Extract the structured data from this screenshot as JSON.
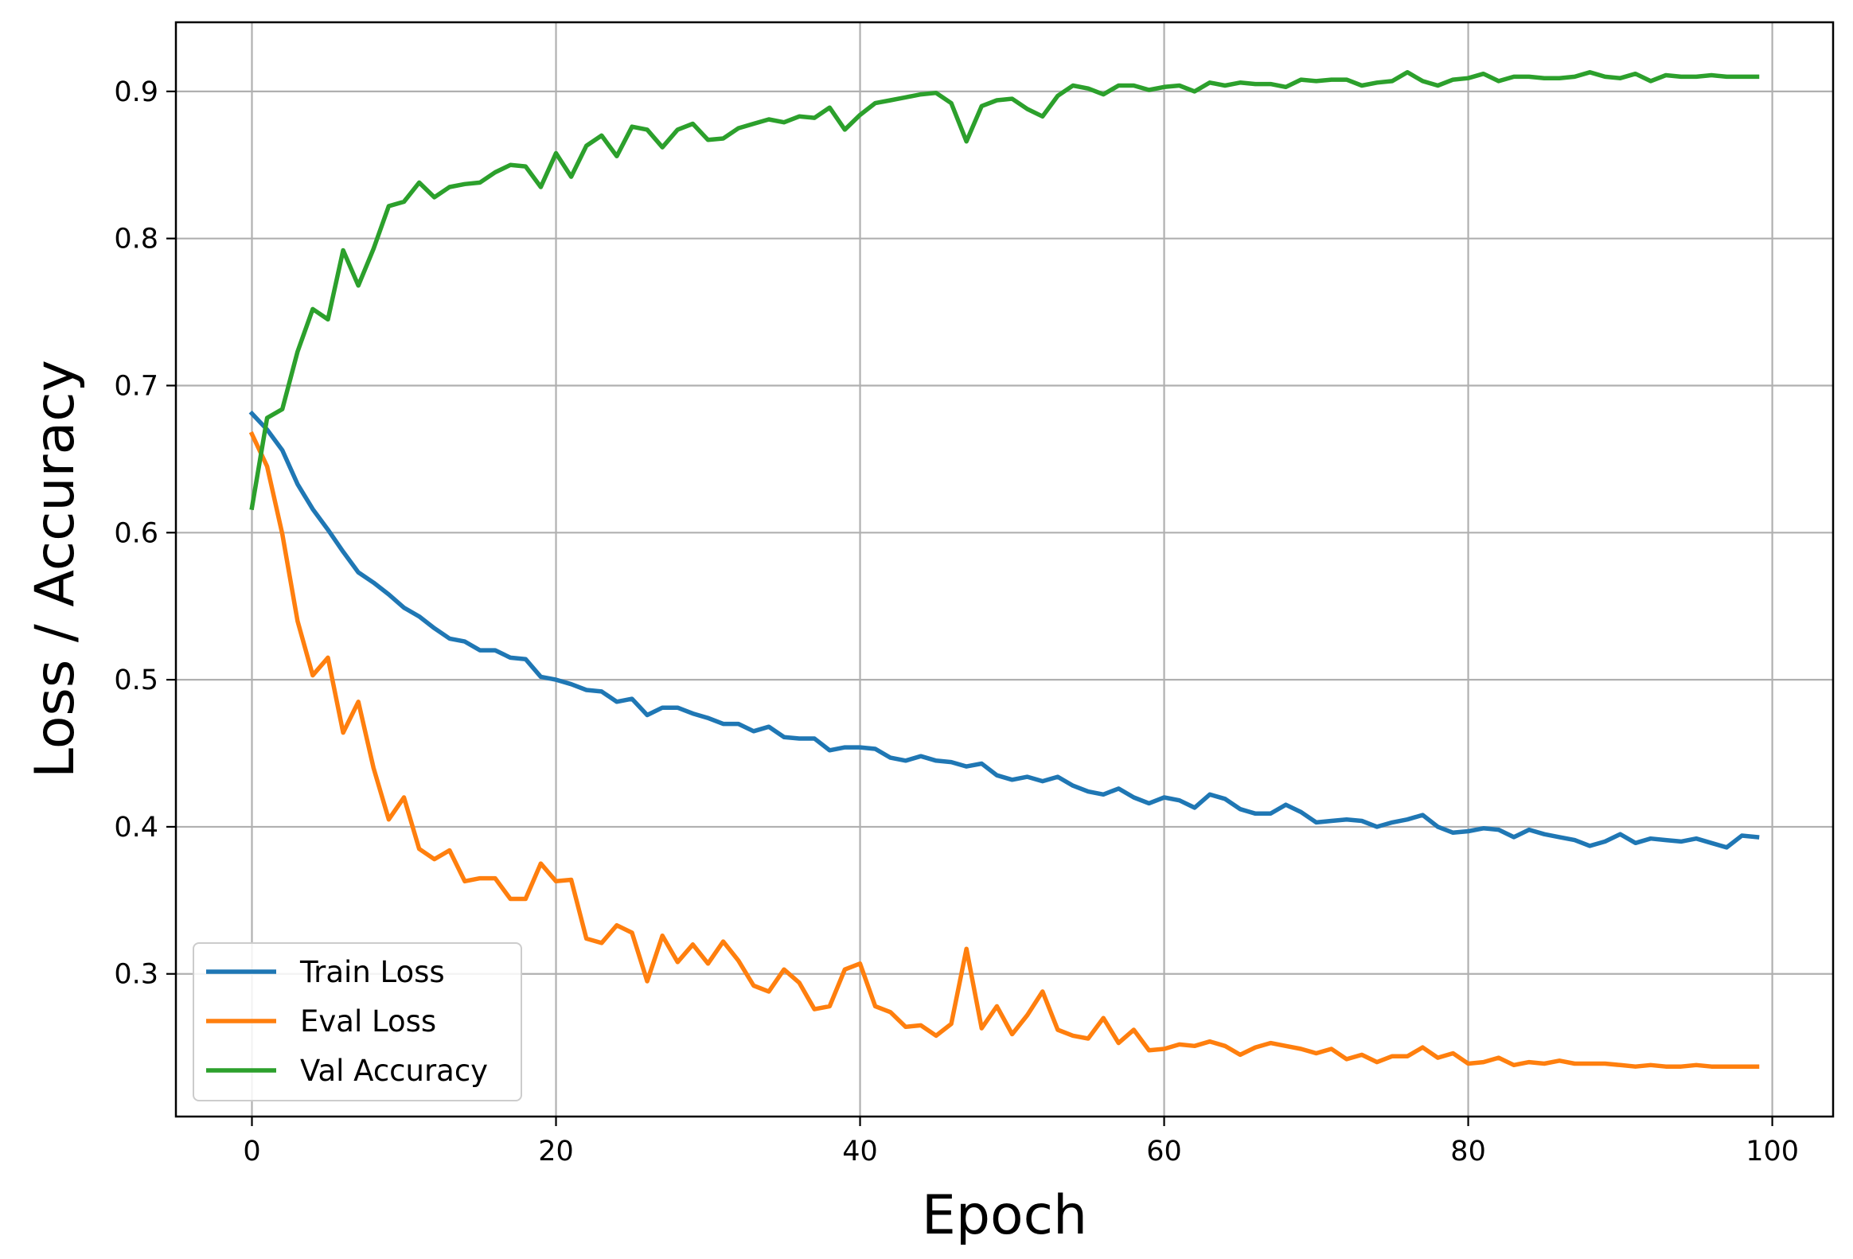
{
  "chart_data": {
    "type": "line",
    "xlabel": "Epoch",
    "ylabel": "Loss / Accuracy",
    "xlim": [
      -5,
      104
    ],
    "ylim": [
      0.203,
      0.947
    ],
    "xticks": [
      0,
      20,
      40,
      60,
      80,
      100
    ],
    "yticks": [
      0.3,
      0.4,
      0.5,
      0.6,
      0.7,
      0.8,
      0.9
    ],
    "xtick_labels": [
      "0",
      "20",
      "40",
      "60",
      "80",
      "100"
    ],
    "ytick_labels": [
      "0.3",
      "0.4",
      "0.5",
      "0.6",
      "0.7",
      "0.8",
      "0.9"
    ],
    "grid": true,
    "legend_position": "lower-left",
    "x": [
      0,
      1,
      2,
      3,
      4,
      5,
      6,
      7,
      8,
      9,
      10,
      11,
      12,
      13,
      14,
      15,
      16,
      17,
      18,
      19,
      20,
      21,
      22,
      23,
      24,
      25,
      26,
      27,
      28,
      29,
      30,
      31,
      32,
      33,
      34,
      35,
      36,
      37,
      38,
      39,
      40,
      41,
      42,
      43,
      44,
      45,
      46,
      47,
      48,
      49,
      50,
      51,
      52,
      53,
      54,
      55,
      56,
      57,
      58,
      59,
      60,
      61,
      62,
      63,
      64,
      65,
      66,
      67,
      68,
      69,
      70,
      71,
      72,
      73,
      74,
      75,
      76,
      77,
      78,
      79,
      80,
      81,
      82,
      83,
      84,
      85,
      86,
      87,
      88,
      89,
      90,
      91,
      92,
      93,
      94,
      95,
      96,
      97,
      98,
      99
    ],
    "series": [
      {
        "name": "Train Loss",
        "color": "#1f77b4",
        "values": [
          0.681,
          0.67,
          0.656,
          0.633,
          0.616,
          0.602,
          0.587,
          0.573,
          0.566,
          0.558,
          0.549,
          0.543,
          0.535,
          0.528,
          0.526,
          0.52,
          0.52,
          0.515,
          0.514,
          0.502,
          0.5,
          0.497,
          0.493,
          0.492,
          0.485,
          0.487,
          0.476,
          0.481,
          0.481,
          0.477,
          0.474,
          0.47,
          0.47,
          0.465,
          0.468,
          0.461,
          0.46,
          0.46,
          0.452,
          0.454,
          0.454,
          0.453,
          0.447,
          0.445,
          0.448,
          0.445,
          0.444,
          0.441,
          0.443,
          0.435,
          0.432,
          0.434,
          0.431,
          0.434,
          0.428,
          0.424,
          0.422,
          0.426,
          0.42,
          0.416,
          0.42,
          0.418,
          0.413,
          0.422,
          0.419,
          0.412,
          0.409,
          0.409,
          0.415,
          0.41,
          0.403,
          0.404,
          0.405,
          0.404,
          0.4,
          0.403,
          0.405,
          0.408,
          0.4,
          0.396,
          0.397,
          0.399,
          0.398,
          0.393,
          0.398,
          0.395,
          0.393,
          0.391,
          0.387,
          0.39,
          0.395,
          0.389,
          0.392,
          0.391,
          0.39,
          0.392,
          0.389,
          0.386,
          0.394,
          0.393
        ]
      },
      {
        "name": "Eval Loss",
        "color": "#ff7f0e",
        "values": [
          0.667,
          0.645,
          0.599,
          0.54,
          0.503,
          0.515,
          0.464,
          0.485,
          0.44,
          0.405,
          0.42,
          0.385,
          0.378,
          0.384,
          0.363,
          0.365,
          0.365,
          0.351,
          0.351,
          0.375,
          0.363,
          0.364,
          0.324,
          0.321,
          0.333,
          0.328,
          0.295,
          0.326,
          0.308,
          0.32,
          0.307,
          0.322,
          0.309,
          0.292,
          0.288,
          0.303,
          0.294,
          0.276,
          0.278,
          0.303,
          0.307,
          0.278,
          0.274,
          0.264,
          0.265,
          0.258,
          0.266,
          0.317,
          0.263,
          0.278,
          0.259,
          0.272,
          0.288,
          0.262,
          0.258,
          0.256,
          0.27,
          0.253,
          0.262,
          0.248,
          0.249,
          0.252,
          0.251,
          0.254,
          0.251,
          0.245,
          0.25,
          0.253,
          0.251,
          0.249,
          0.246,
          0.249,
          0.242,
          0.245,
          0.24,
          0.244,
          0.244,
          0.25,
          0.243,
          0.246,
          0.239,
          0.24,
          0.243,
          0.238,
          0.24,
          0.239,
          0.241,
          0.239,
          0.239,
          0.239,
          0.238,
          0.237,
          0.238,
          0.237,
          0.237,
          0.238,
          0.237,
          0.237,
          0.237,
          0.237
        ]
      },
      {
        "name": "Val Accuracy",
        "color": "#2ca02c",
        "values": [
          0.617,
          0.678,
          0.684,
          0.723,
          0.752,
          0.745,
          0.792,
          0.768,
          0.793,
          0.822,
          0.825,
          0.838,
          0.828,
          0.835,
          0.837,
          0.838,
          0.845,
          0.85,
          0.849,
          0.835,
          0.858,
          0.842,
          0.863,
          0.87,
          0.856,
          0.876,
          0.874,
          0.862,
          0.874,
          0.878,
          0.867,
          0.868,
          0.875,
          0.878,
          0.881,
          0.879,
          0.883,
          0.882,
          0.889,
          0.874,
          0.884,
          0.892,
          0.894,
          0.896,
          0.898,
          0.899,
          0.892,
          0.866,
          0.89,
          0.894,
          0.895,
          0.888,
          0.883,
          0.897,
          0.904,
          0.902,
          0.898,
          0.904,
          0.904,
          0.901,
          0.903,
          0.904,
          0.9,
          0.906,
          0.904,
          0.906,
          0.905,
          0.905,
          0.903,
          0.908,
          0.907,
          0.908,
          0.908,
          0.904,
          0.906,
          0.907,
          0.913,
          0.907,
          0.904,
          0.908,
          0.909,
          0.912,
          0.907,
          0.91,
          0.91,
          0.909,
          0.909,
          0.91,
          0.913,
          0.91,
          0.909,
          0.912,
          0.907,
          0.911,
          0.91,
          0.91,
          0.911,
          0.91,
          0.91,
          0.91
        ]
      }
    ]
  }
}
